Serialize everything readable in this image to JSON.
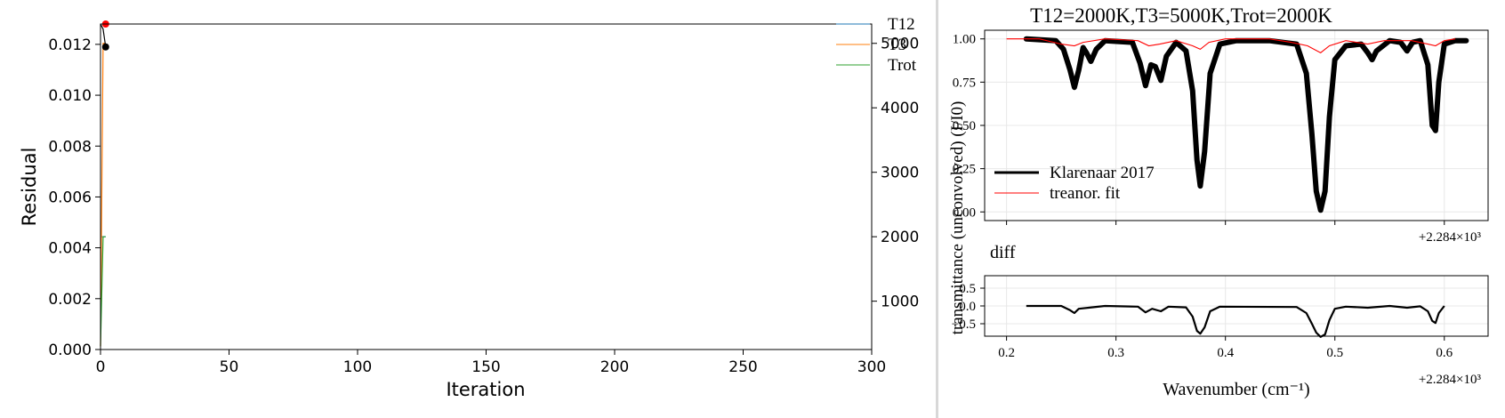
{
  "colors": {
    "background": "#ffffff",
    "axis": "#000000",
    "divider": "#d8d8d8",
    "t12": "#1f77b4",
    "t3": "#ff7f0e",
    "trot": "#2ca02c",
    "fit": "#ff0000",
    "residual_line": "#000000",
    "grid": "#e8e8e8"
  },
  "chart_data": [
    {
      "type": "line",
      "title": "",
      "xlabel": "Iteration",
      "ylabel": "Residual",
      "xlim": [
        0,
        300
      ],
      "ylim": [
        0,
        0.0128
      ],
      "x_ticks": [
        "0",
        "50",
        "100",
        "150",
        "200",
        "250",
        "300"
      ],
      "y_ticks": [
        "0.000",
        "0.002",
        "0.004",
        "0.006",
        "0.008",
        "0.010",
        "0.012"
      ],
      "secondary_y": {
        "ylim": [
          250,
          5300
        ],
        "ticks": [
          "1000",
          "2000",
          "3000",
          "4000",
          "5000"
        ]
      },
      "legend": {
        "placement": "top-right",
        "entries": [
          "T12",
          "T3",
          "Trot"
        ]
      },
      "series": [
        {
          "name": "T12",
          "axis": "right",
          "x": [
            0,
            1,
            2
          ],
          "y": [
            2000,
            2000,
            2000
          ]
        },
        {
          "name": "T3",
          "axis": "right",
          "x": [
            0,
            1,
            2
          ],
          "y": [
            300,
            5000,
            5000
          ]
        },
        {
          "name": "Trot",
          "axis": "right",
          "x": [
            0,
            1,
            2
          ],
          "y": [
            300,
            2000,
            2000
          ]
        },
        {
          "name": "",
          "axis": "left",
          "x": [
            0,
            1,
            2
          ],
          "y": [
            0.0128,
            0.0126,
            0.0119
          ]
        }
      ],
      "markers": [
        {
          "x": 2,
          "y": 0.0119,
          "color": "#000000"
        },
        {
          "x": 2,
          "y": 0.0128,
          "color": "#ff0000"
        }
      ]
    },
    {
      "type": "line",
      "title": "T12=2000K,T3=5000K,Trot=2000K",
      "xlabel": "",
      "ylabel": "transmittance (unconvolved) (I/I0)",
      "xlim": [
        0.18,
        0.64
      ],
      "ylim": [
        -0.05,
        1.05
      ],
      "x_offset_label": "+2.284×10³",
      "y_ticks": [
        "0.00",
        "0.25",
        "0.50",
        "0.75",
        "1.00"
      ],
      "legend": {
        "placement": "lower-left",
        "entries": [
          "Klarenaar 2017",
          "treanor. fit"
        ]
      },
      "series": [
        {
          "name": "Klarenaar 2017",
          "line_points": [
            [
              0.218,
              1.0
            ],
            [
              0.245,
              0.99
            ],
            [
              0.252,
              0.94
            ],
            [
              0.258,
              0.82
            ],
            [
              0.262,
              0.72
            ],
            [
              0.266,
              0.82
            ],
            [
              0.27,
              0.95
            ],
            [
              0.273,
              0.92
            ],
            [
              0.277,
              0.87
            ],
            [
              0.282,
              0.94
            ],
            [
              0.29,
              0.99
            ],
            [
              0.315,
              0.98
            ],
            [
              0.322,
              0.86
            ],
            [
              0.327,
              0.73
            ],
            [
              0.332,
              0.85
            ],
            [
              0.336,
              0.84
            ],
            [
              0.341,
              0.76
            ],
            [
              0.346,
              0.9
            ],
            [
              0.355,
              0.98
            ],
            [
              0.364,
              0.93
            ],
            [
              0.37,
              0.7
            ],
            [
              0.374,
              0.3
            ],
            [
              0.377,
              0.15
            ],
            [
              0.381,
              0.35
            ],
            [
              0.386,
              0.8
            ],
            [
              0.395,
              0.97
            ],
            [
              0.41,
              0.99
            ],
            [
              0.44,
              0.99
            ],
            [
              0.465,
              0.97
            ],
            [
              0.474,
              0.8
            ],
            [
              0.479,
              0.45
            ],
            [
              0.483,
              0.12
            ],
            [
              0.487,
              0.01
            ],
            [
              0.491,
              0.12
            ],
            [
              0.495,
              0.55
            ],
            [
              0.5,
              0.88
            ],
            [
              0.51,
              0.96
            ],
            [
              0.524,
              0.97
            ],
            [
              0.53,
              0.92
            ],
            [
              0.534,
              0.88
            ],
            [
              0.538,
              0.93
            ],
            [
              0.55,
              0.99
            ],
            [
              0.56,
              0.98
            ],
            [
              0.566,
              0.93
            ],
            [
              0.571,
              0.98
            ],
            [
              0.578,
              0.99
            ],
            [
              0.585,
              0.85
            ],
            [
              0.589,
              0.5
            ],
            [
              0.592,
              0.47
            ],
            [
              0.595,
              0.75
            ],
            [
              0.6,
              0.97
            ],
            [
              0.61,
              0.99
            ],
            [
              0.62,
              0.99
            ]
          ]
        },
        {
          "name": "treanor. fit",
          "line_points": [
            [
              0.2,
              1.0
            ],
            [
              0.23,
              1.0
            ],
            [
              0.25,
              0.97
            ],
            [
              0.262,
              0.96
            ],
            [
              0.27,
              0.98
            ],
            [
              0.29,
              1.0
            ],
            [
              0.32,
              0.99
            ],
            [
              0.33,
              0.96
            ],
            [
              0.34,
              0.97
            ],
            [
              0.355,
              0.99
            ],
            [
              0.37,
              0.96
            ],
            [
              0.377,
              0.94
            ],
            [
              0.385,
              0.98
            ],
            [
              0.4,
              1.0
            ],
            [
              0.44,
              1.0
            ],
            [
              0.46,
              0.98
            ],
            [
              0.475,
              0.96
            ],
            [
              0.487,
              0.92
            ],
            [
              0.495,
              0.96
            ],
            [
              0.51,
              0.99
            ],
            [
              0.53,
              0.97
            ],
            [
              0.545,
              0.99
            ],
            [
              0.57,
              0.99
            ],
            [
              0.585,
              0.97
            ],
            [
              0.592,
              0.96
            ],
            [
              0.6,
              0.99
            ],
            [
              0.61,
              1.0
            ]
          ]
        }
      ]
    },
    {
      "type": "line",
      "title": "diff",
      "xlabel": "Wavenumber (cm⁻¹)",
      "ylabel": "",
      "xlim": [
        0.18,
        0.64
      ],
      "ylim": [
        -0.85,
        0.85
      ],
      "x_ticks": [
        "0.2",
        "0.3",
        "0.4",
        "0.5",
        "0.6"
      ],
      "x_offset_label": "+2.284×10³",
      "y_ticks": [
        "0.5",
        "0.0",
        "−0.5"
      ],
      "series": [
        {
          "name": "",
          "line_points": [
            [
              0.218,
              0.0
            ],
            [
              0.25,
              0.0
            ],
            [
              0.258,
              -0.12
            ],
            [
              0.262,
              -0.2
            ],
            [
              0.266,
              -0.08
            ],
            [
              0.275,
              -0.05
            ],
            [
              0.29,
              0.0
            ],
            [
              0.32,
              -0.02
            ],
            [
              0.327,
              -0.18
            ],
            [
              0.333,
              -0.08
            ],
            [
              0.341,
              -0.15
            ],
            [
              0.348,
              -0.02
            ],
            [
              0.364,
              -0.04
            ],
            [
              0.37,
              -0.3
            ],
            [
              0.374,
              -0.7
            ],
            [
              0.377,
              -0.78
            ],
            [
              0.381,
              -0.6
            ],
            [
              0.386,
              -0.15
            ],
            [
              0.395,
              -0.02
            ],
            [
              0.465,
              -0.03
            ],
            [
              0.474,
              -0.2
            ],
            [
              0.479,
              -0.5
            ],
            [
              0.483,
              -0.75
            ],
            [
              0.487,
              -0.87
            ],
            [
              0.491,
              -0.8
            ],
            [
              0.495,
              -0.4
            ],
            [
              0.5,
              -0.08
            ],
            [
              0.51,
              -0.02
            ],
            [
              0.53,
              -0.05
            ],
            [
              0.55,
              0.0
            ],
            [
              0.566,
              -0.05
            ],
            [
              0.578,
              -0.01
            ],
            [
              0.585,
              -0.15
            ],
            [
              0.589,
              -0.42
            ],
            [
              0.592,
              -0.48
            ],
            [
              0.595,
              -0.2
            ],
            [
              0.6,
              0.0
            ]
          ]
        }
      ]
    }
  ]
}
